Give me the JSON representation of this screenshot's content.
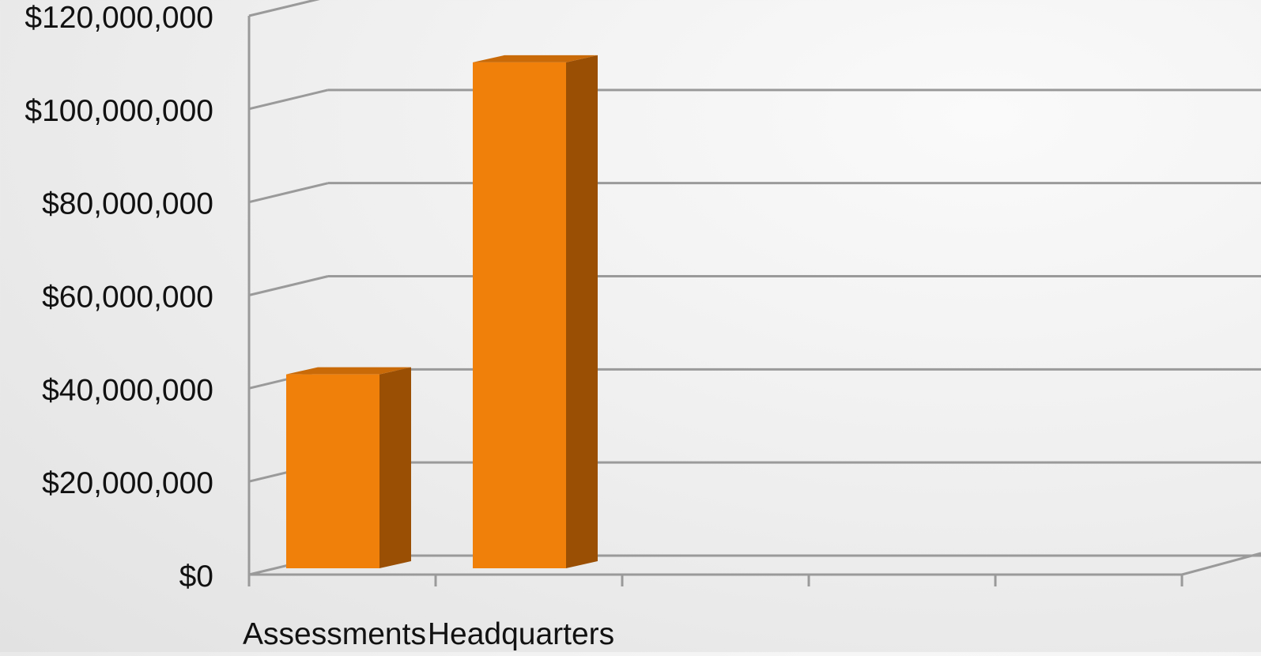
{
  "chart_data": {
    "type": "bar",
    "style": "3d-column",
    "categories": [
      "Assessments",
      "Headquarters",
      "",
      "",
      ""
    ],
    "values": [
      43000000,
      110000000,
      null,
      null,
      null
    ],
    "title": "",
    "xlabel": "",
    "ylabel": "",
    "ylim": [
      0,
      120000000
    ],
    "y_ticks": [
      "$0",
      "$20,000,000",
      "$40,000,000",
      "$60,000,000",
      "$80,000,000",
      "$100,000,000",
      "$120,000,000"
    ],
    "grid": true,
    "legend": "none",
    "colors": {
      "bar_front": "#f0800a",
      "bar_top": "#c96a08",
      "bar_side": "#9a4f04",
      "gridline": "#9a9a9a",
      "text": "#111111"
    }
  }
}
